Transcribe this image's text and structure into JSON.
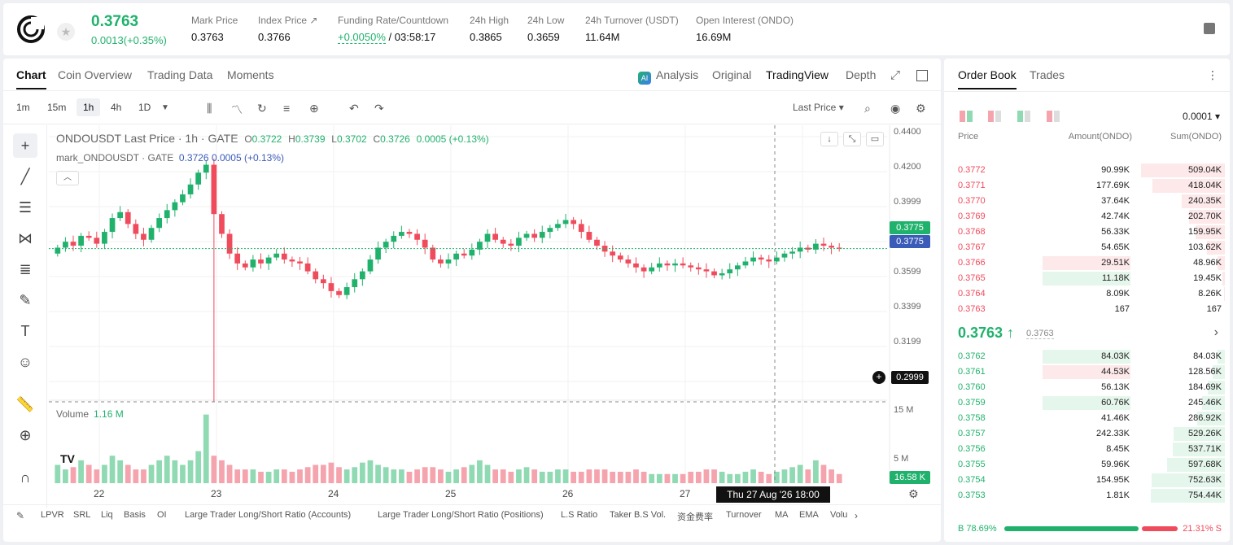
{
  "header": {
    "price": "0.3763",
    "change": "0.0013(+0.35%)",
    "stats": [
      {
        "label": "Mark Price",
        "value": "0.3763"
      },
      {
        "label": "Index Price ↗",
        "value": "0.3766"
      },
      {
        "label": "Funding Rate/Countdown",
        "value": "+0.0050%",
        "value2": "/ 03:58:17"
      },
      {
        "label": "24h High",
        "value": "0.3865"
      },
      {
        "label": "24h Low",
        "value": "0.3659"
      },
      {
        "label": "24h Turnover (USDT)",
        "value": "11.64M"
      },
      {
        "label": "Open Interest (ONDO)",
        "value": "16.69M"
      }
    ]
  },
  "chart_tabs": [
    "Chart",
    "Coin Overview",
    "Trading Data",
    "Moments"
  ],
  "view_tabs": [
    "Analysis",
    "Original",
    "TradingView",
    "Depth"
  ],
  "timeframes": [
    "1m",
    "15m",
    "1h",
    "4h",
    "1D"
  ],
  "price_type": "Last Price",
  "legend": {
    "symbol": "ONDOUSDT Last Price · 1h · GATE",
    "o_label": "O",
    "o": "0.3722",
    "h_label": "H",
    "h": "0.3739",
    "l_label": "L",
    "l": "0.3702",
    "c_label": "C",
    "c": "0.3726",
    "chg": "0.0005 (+0.13%)",
    "mark_label": "mark_ONDOUSDT · GATE",
    "mark_vals": "0.3726  0.0005  (+0.13%)"
  },
  "volume": {
    "label": "Volume",
    "value": "1.16 M"
  },
  "chart_data": {
    "type": "candlestick",
    "y_ticks": [
      "0.4400",
      "0.4200",
      "0.3999",
      "0.3799",
      "0.3599",
      "0.3399",
      "0.3199"
    ],
    "ylim": [
      0.2999,
      0.44
    ],
    "x_ticks": [
      "22",
      "23",
      "24",
      "25",
      "26",
      "27"
    ],
    "volume_ticks": [
      "15 M",
      "5 M"
    ],
    "last_price": "0.3775",
    "mark_price": "0.3775",
    "cursor_price": "0.2999",
    "cursor_volume": "16.58 K",
    "cursor_time": "Thu 27 Aug '26   18:00",
    "closes": [
      0.378,
      0.381,
      0.379,
      0.384,
      0.383,
      0.38,
      0.386,
      0.393,
      0.396,
      0.39,
      0.385,
      0.382,
      0.388,
      0.393,
      0.397,
      0.401,
      0.405,
      0.41,
      0.416,
      0.42,
      0.395,
      0.385,
      0.375,
      0.37,
      0.368,
      0.372,
      0.37,
      0.373,
      0.375,
      0.372,
      0.371,
      0.37,
      0.366,
      0.362,
      0.36,
      0.356,
      0.354,
      0.358,
      0.362,
      0.366,
      0.372,
      0.378,
      0.381,
      0.384,
      0.386,
      0.385,
      0.382,
      0.378,
      0.372,
      0.37,
      0.372,
      0.375,
      0.374,
      0.377,
      0.381,
      0.385,
      0.382,
      0.38,
      0.379,
      0.383,
      0.385,
      0.383,
      0.386,
      0.388,
      0.39,
      0.392,
      0.39,
      0.386,
      0.382,
      0.379,
      0.376,
      0.374,
      0.372,
      0.37,
      0.368,
      0.366,
      0.368,
      0.37,
      0.369,
      0.37,
      0.369,
      0.368,
      0.367,
      0.366,
      0.364,
      0.365,
      0.367,
      0.369,
      0.371,
      0.373,
      0.372,
      0.371,
      0.373,
      0.375,
      0.376,
      0.378,
      0.377,
      0.38,
      0.379,
      0.378,
      0.3775
    ],
    "volumes": [
      4,
      3,
      3.5,
      5,
      4,
      3,
      4,
      6,
      5,
      4,
      3,
      3,
      4,
      5,
      6,
      5,
      4,
      5,
      7,
      15,
      6,
      5,
      4,
      3,
      3,
      3,
      2.5,
      2.5,
      3,
      3,
      2.5,
      3,
      3.5,
      4,
      4,
      4.5,
      3.5,
      3,
      3.5,
      4.5,
      5,
      4,
      3.5,
      3,
      3,
      2.5,
      3,
      3.5,
      3.5,
      3,
      2.5,
      3,
      3.5,
      4,
      5,
      4,
      3,
      3,
      2.5,
      3,
      3.5,
      3,
      2.5,
      2.5,
      3,
      3,
      2.5,
      2.5,
      3,
      3,
      3,
      2.5,
      2.5,
      2.5,
      3,
      2.5,
      2,
      2,
      2,
      2,
      2,
      2.5,
      2.5,
      3,
      3,
      2.5,
      2,
      2,
      2.5,
      3,
      2.5,
      2,
      2.5,
      3,
      3.5,
      4,
      3,
      5,
      4,
      3,
      2
    ]
  },
  "indicators": [
    "LPVR",
    "SRL",
    "Liq",
    "Basis",
    "OI",
    "Large Trader Long/Short Ratio (Accounts)",
    "Large Trader Long/Short Ratio (Positions)",
    "L.S Ratio",
    "Taker B.S Vol.",
    "资金费率",
    "Turnover",
    "MA",
    "EMA",
    "Volu"
  ],
  "orderbook": {
    "tabs": [
      "Order Book",
      "Trades"
    ],
    "precision": "0.0001",
    "headers": [
      "Price",
      "Amount(ONDO)",
      "Sum(ONDO)"
    ],
    "asks": [
      {
        "price": "0.3772",
        "amount": "90.99K",
        "sum": "509.04K",
        "depth": 0.98,
        "hl": 0
      },
      {
        "price": "0.3771",
        "amount": "177.69K",
        "sum": "418.04K",
        "depth": 0.85,
        "hl": 0
      },
      {
        "price": "0.3770",
        "amount": "37.64K",
        "sum": "240.35K",
        "depth": 0.5,
        "hl": 0
      },
      {
        "price": "0.3769",
        "amount": "42.74K",
        "sum": "202.70K",
        "depth": 0.42,
        "hl": 0
      },
      {
        "price": "0.3768",
        "amount": "56.33K",
        "sum": "159.95K",
        "depth": 0.34,
        "hl": 0
      },
      {
        "price": "0.3767",
        "amount": "54.65K",
        "sum": "103.62K",
        "depth": 0.21,
        "hl": 0
      },
      {
        "price": "0.3766",
        "amount": "29.51K",
        "sum": "48.96K",
        "depth": 0.09,
        "hl": 1
      },
      {
        "price": "0.3765",
        "amount": "11.18K",
        "sum": "19.45K",
        "depth": 0.03,
        "hl": 2
      },
      {
        "price": "0.3764",
        "amount": "8.09K",
        "sum": "8.26K",
        "depth": 0.01,
        "hl": 0
      },
      {
        "price": "0.3763",
        "amount": "167",
        "sum": "167",
        "depth": 0.0,
        "hl": 0
      }
    ],
    "mid_price": "0.3763 ↑",
    "mid_mark": "0.3763",
    "bids": [
      {
        "price": "0.3762",
        "amount": "84.03K",
        "sum": "84.03K",
        "depth": 0.09,
        "hl": 2
      },
      {
        "price": "0.3761",
        "amount": "44.53K",
        "sum": "128.56K",
        "depth": 0.14,
        "hl": 1
      },
      {
        "price": "0.3760",
        "amount": "56.13K",
        "sum": "184.69K",
        "depth": 0.2,
        "hl": 0
      },
      {
        "price": "0.3759",
        "amount": "60.76K",
        "sum": "245.46K",
        "depth": 0.27,
        "hl": 2
      },
      {
        "price": "0.3758",
        "amount": "41.46K",
        "sum": "286.92K",
        "depth": 0.32,
        "hl": 0
      },
      {
        "price": "0.3757",
        "amount": "242.33K",
        "sum": "529.26K",
        "depth": 0.6,
        "hl": 0
      },
      {
        "price": "0.3756",
        "amount": "8.45K",
        "sum": "537.71K",
        "depth": 0.61,
        "hl": 0
      },
      {
        "price": "0.3755",
        "amount": "59.96K",
        "sum": "597.68K",
        "depth": 0.68,
        "hl": 0
      },
      {
        "price": "0.3754",
        "amount": "154.95K",
        "sum": "752.63K",
        "depth": 0.86,
        "hl": 0
      },
      {
        "price": "0.3753",
        "amount": "1.81K",
        "sum": "754.44K",
        "depth": 0.87,
        "hl": 0
      }
    ],
    "buy_ratio": "B 78.69%",
    "sell_ratio": "21.31% S"
  },
  "colors": {
    "up": "#20b26c",
    "down": "#f04b5c",
    "up_vol": "#8fd9b3",
    "down_vol": "#f5a3ad"
  }
}
